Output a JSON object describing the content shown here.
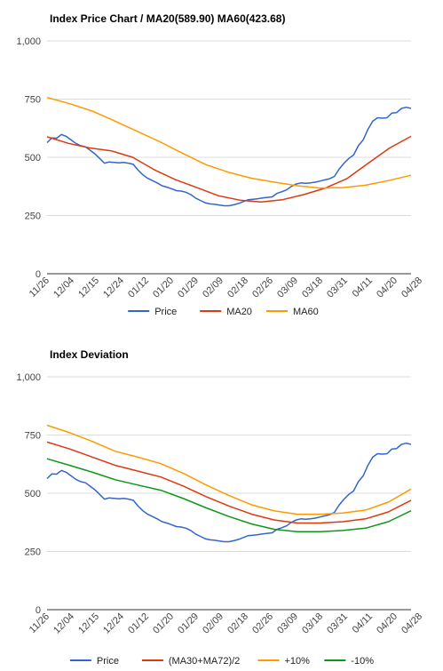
{
  "chart_data": [
    {
      "type": "line",
      "title": "Index Price Chart / MA20(589.90) MA60(423.68)",
      "ylim": [
        0,
        1000
      ],
      "yticks": [
        "0",
        "250",
        "500",
        "750",
        "1,000"
      ],
      "ytick_values": [
        0,
        250,
        500,
        750,
        1000
      ],
      "x_labels": [
        "11/26",
        "12/04",
        "12/15",
        "12/24",
        "01/12",
        "01/20",
        "01/29",
        "02/09",
        "02/18",
        "02/26",
        "03/09",
        "03/18",
        "03/31",
        "04/11",
        "04/20",
        "04/28"
      ],
      "grid": true,
      "legend_position": "bottom",
      "series": [
        {
          "name": "Price",
          "color": "#3366cc",
          "values": [
            563,
            583,
            582,
            598,
            590,
            575,
            560,
            550,
            545,
            530,
            515,
            495,
            475,
            480,
            478,
            476,
            478,
            475,
            470,
            445,
            425,
            410,
            400,
            390,
            378,
            372,
            365,
            357,
            355,
            350,
            340,
            325,
            315,
            305,
            300,
            298,
            295,
            292,
            292,
            296,
            302,
            310,
            318,
            320,
            322,
            325,
            328,
            330,
            345,
            352,
            360,
            375,
            385,
            390,
            388,
            390,
            393,
            398,
            403,
            408,
            418,
            450,
            475,
            495,
            510,
            550,
            575,
            620,
            655,
            670,
            668,
            670,
            690,
            692,
            710,
            715,
            710
          ]
        },
        {
          "name": "MA20",
          "color": "#dc3912",
          "values": [
            588,
            560,
            540,
            528,
            500,
            447,
            404,
            370,
            335,
            316,
            308,
            318,
            340,
            368,
            408,
            475,
            540,
            590
          ]
        },
        {
          "name": "MA60",
          "color": "#ff9900",
          "values": [
            757,
            730,
            698,
            655,
            610,
            565,
            515,
            468,
            435,
            410,
            393,
            378,
            368,
            370,
            380,
            400,
            423
          ]
        }
      ]
    },
    {
      "type": "line",
      "title": "Index Deviation",
      "ylim": [
        0,
        1000
      ],
      "yticks": [
        "0",
        "250",
        "500",
        "750",
        "1,000"
      ],
      "ytick_values": [
        0,
        250,
        500,
        750,
        1000
      ],
      "x_labels": [
        "11/26",
        "12/04",
        "12/15",
        "12/24",
        "01/12",
        "01/20",
        "01/29",
        "02/09",
        "02/18",
        "02/26",
        "03/09",
        "03/18",
        "03/31",
        "04/11",
        "04/20",
        "04/28"
      ],
      "grid": true,
      "legend_position": "bottom",
      "series": [
        {
          "name": "Price",
          "color": "#3366cc",
          "values": [
            563,
            583,
            582,
            598,
            590,
            575,
            560,
            550,
            545,
            530,
            515,
            495,
            475,
            480,
            478,
            476,
            478,
            475,
            470,
            445,
            425,
            410,
            400,
            390,
            378,
            372,
            365,
            357,
            355,
            350,
            340,
            325,
            315,
            305,
            300,
            298,
            295,
            292,
            292,
            296,
            302,
            310,
            318,
            320,
            322,
            325,
            328,
            330,
            345,
            352,
            360,
            375,
            385,
            390,
            388,
            390,
            393,
            398,
            403,
            408,
            418,
            450,
            475,
            495,
            510,
            550,
            575,
            620,
            655,
            670,
            668,
            670,
            690,
            692,
            710,
            715,
            710
          ]
        },
        {
          "name": "(MA30+MA72)/2",
          "color": "#dc3912",
          "values": [
            720,
            690,
            655,
            620,
            595,
            570,
            530,
            485,
            445,
            410,
            385,
            372,
            372,
            378,
            390,
            420,
            470
          ]
        },
        {
          "name": "+10%",
          "color": "#ff9900",
          "values": [
            792,
            760,
            722,
            680,
            655,
            627,
            585,
            535,
            490,
            450,
            424,
            410,
            410,
            415,
            428,
            462,
            518
          ]
        },
        {
          "name": "-10%",
          "color": "#109618",
          "values": [
            648,
            620,
            590,
            558,
            535,
            513,
            477,
            437,
            400,
            368,
            345,
            335,
            335,
            340,
            350,
            378,
            425
          ]
        }
      ]
    }
  ]
}
